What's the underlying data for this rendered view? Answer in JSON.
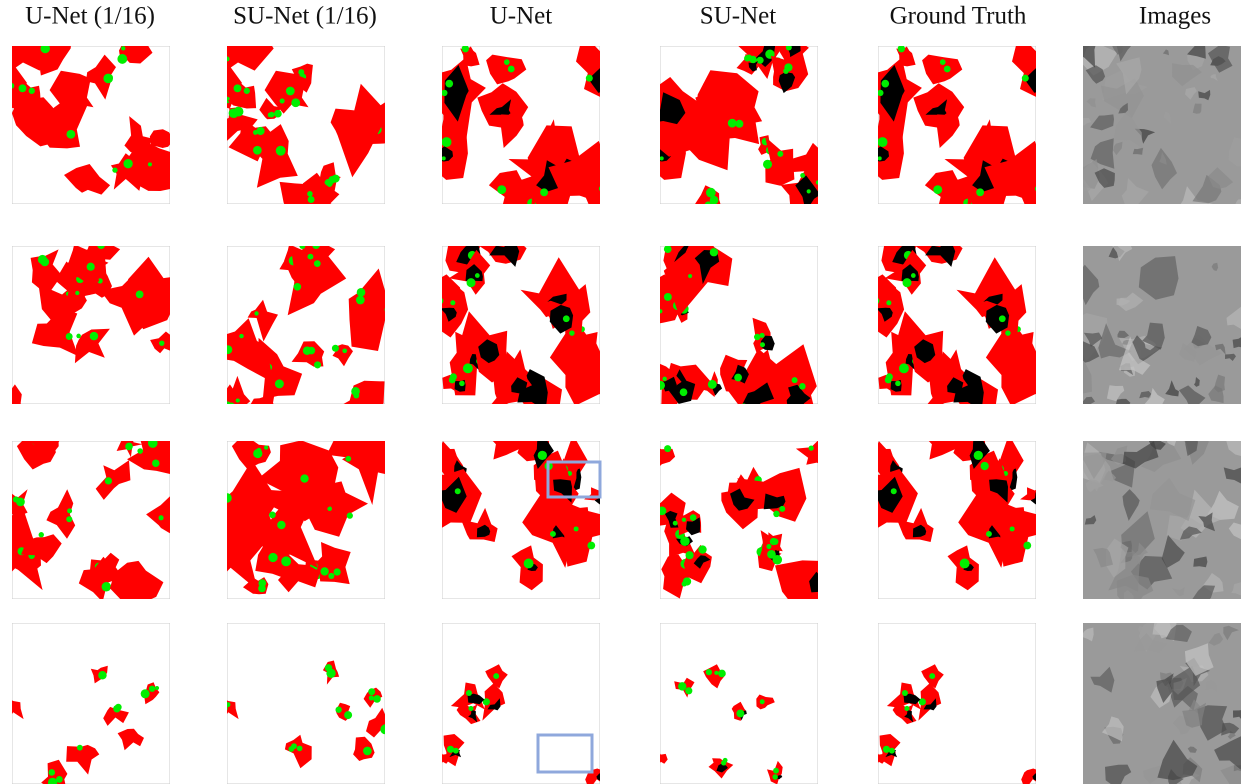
{
  "columns": [
    "U-Net (1/16)",
    "SU-Net (1/16)",
    "U-Net",
    "SU-Net",
    "Ground Truth",
    "Images"
  ]
}
